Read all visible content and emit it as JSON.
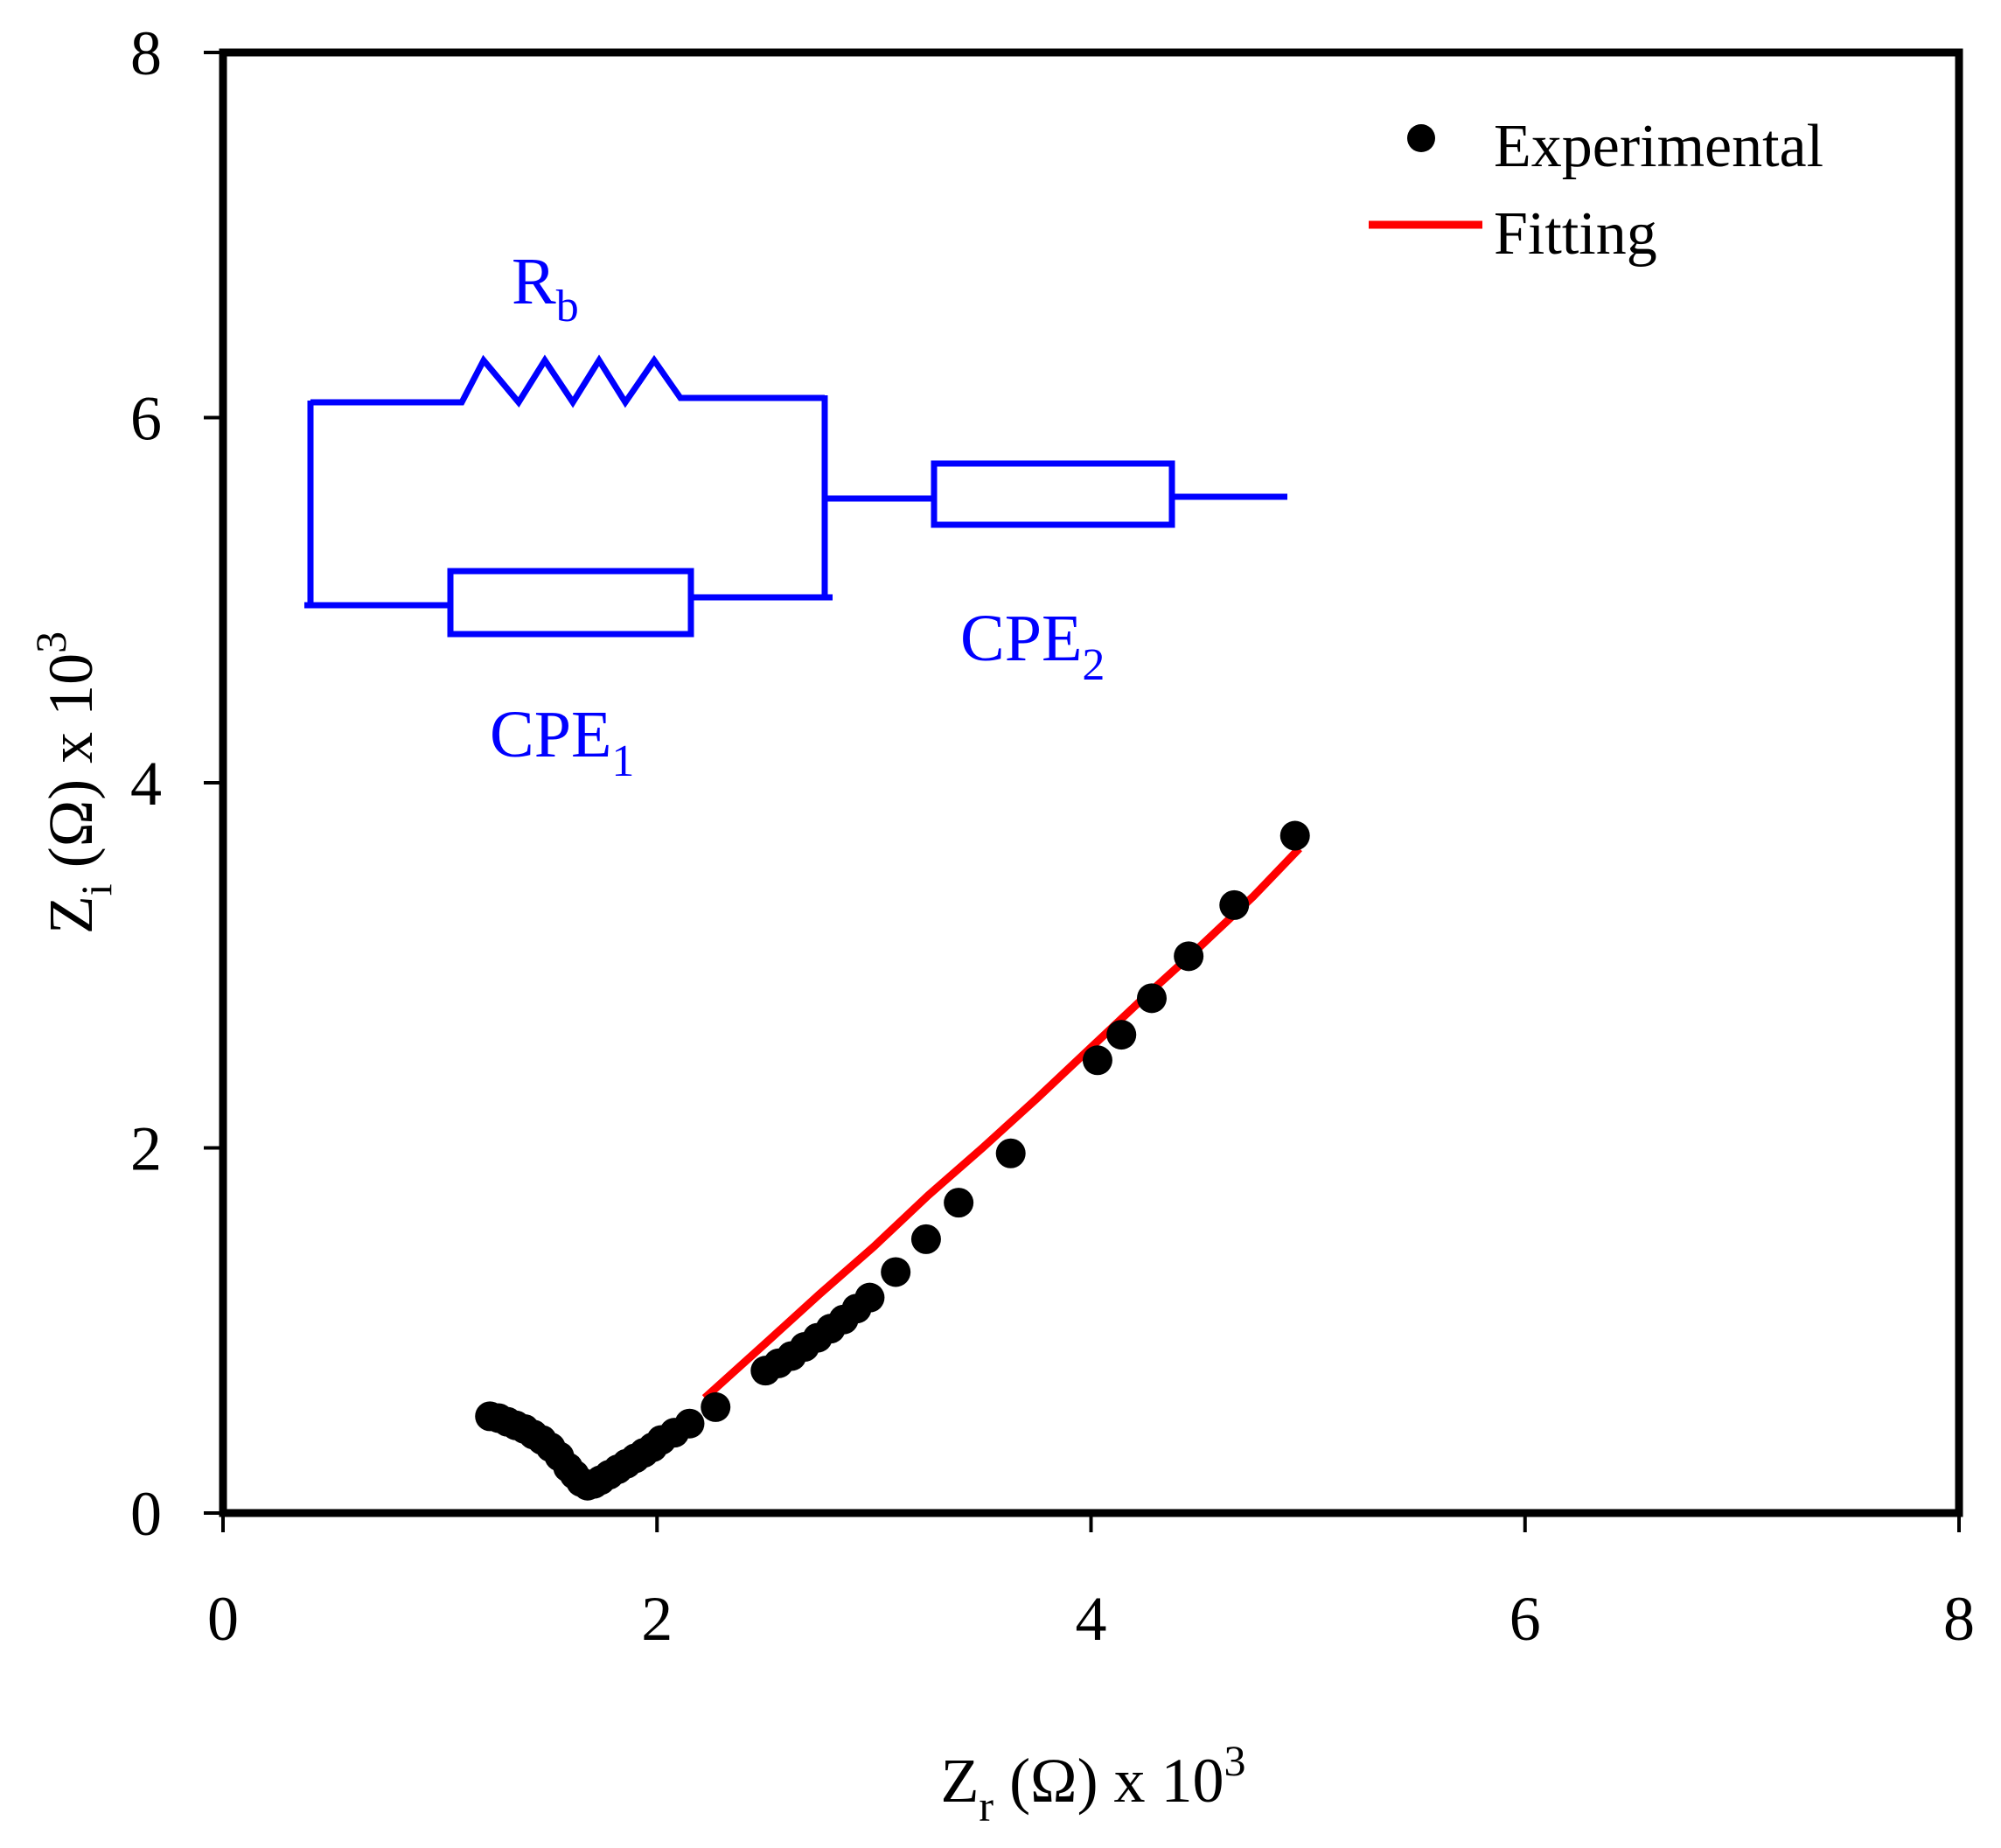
{
  "colors": {
    "axis": "#000000",
    "points": "#000000",
    "fit": "#ff0000",
    "circuit": "#0000ff",
    "background": "#ffffff"
  },
  "chart_data": {
    "type": "scatter",
    "title": "",
    "xlabel": {
      "main": "Z",
      "sub": "r",
      "rest": " (Ω) x 10",
      "sup": "3"
    },
    "ylabel": {
      "main": "Z",
      "sub": "i",
      "rest": " (Ω) x 10",
      "sup": "3"
    },
    "xlim": [
      0,
      8
    ],
    "ylim": [
      0,
      8
    ],
    "xticks": [
      0,
      2,
      4,
      6,
      8
    ],
    "yticks": [
      0,
      2,
      4,
      6,
      8
    ],
    "xtick_labels": [
      "0",
      "2",
      "4",
      "6",
      "8"
    ],
    "ytick_labels": [
      "0",
      "2",
      "4",
      "6",
      "8"
    ],
    "grid": false,
    "legend": {
      "position": "top-right",
      "entries": [
        {
          "label": "Experimental",
          "marker": "circle"
        },
        {
          "label": "Fitting",
          "marker": "line"
        }
      ]
    },
    "series": [
      {
        "name": "Experimental",
        "kind": "scatter",
        "x": [
          1.23,
          1.27,
          1.31,
          1.35,
          1.39,
          1.43,
          1.47,
          1.51,
          1.55,
          1.59,
          1.62,
          1.65,
          1.68,
          1.71,
          1.74,
          1.78,
          1.82,
          1.86,
          1.9,
          1.94,
          1.98,
          2.02,
          2.08,
          2.15,
          2.27,
          2.5,
          2.56,
          2.62,
          2.68,
          2.74,
          2.8,
          2.86,
          2.92,
          2.98,
          3.1,
          3.24,
          3.39,
          3.63,
          4.03,
          4.14,
          4.28,
          4.45,
          4.66,
          4.94
        ],
        "y": [
          0.53,
          0.52,
          0.5,
          0.48,
          0.46,
          0.43,
          0.4,
          0.36,
          0.31,
          0.25,
          0.21,
          0.17,
          0.15,
          0.16,
          0.18,
          0.21,
          0.24,
          0.27,
          0.3,
          0.33,
          0.36,
          0.4,
          0.44,
          0.49,
          0.58,
          0.78,
          0.82,
          0.86,
          0.91,
          0.96,
          1.01,
          1.06,
          1.12,
          1.18,
          1.32,
          1.5,
          1.7,
          1.97,
          2.48,
          2.62,
          2.82,
          3.05,
          3.33,
          3.71
        ]
      },
      {
        "name": "Fitting",
        "kind": "line",
        "x": [
          2.22,
          2.5,
          2.75,
          3.0,
          3.25,
          3.5,
          3.75,
          4.0,
          4.25,
          4.5,
          4.75,
          4.96
        ],
        "y": [
          0.63,
          0.93,
          1.2,
          1.46,
          1.74,
          2.0,
          2.27,
          2.55,
          2.83,
          3.1,
          3.38,
          3.64
        ]
      }
    ]
  },
  "circuit": {
    "resistor": {
      "main": "R",
      "sub": "b"
    },
    "cpe1": {
      "main": "CPE",
      "sub": "1"
    },
    "cpe2": {
      "main": "CPE",
      "sub": "2"
    }
  }
}
